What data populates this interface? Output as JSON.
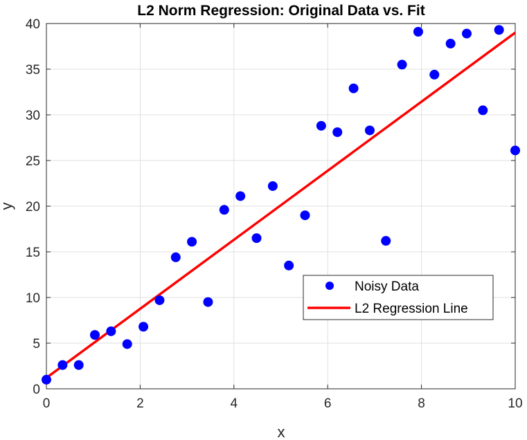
{
  "chart_data": {
    "type": "scatter",
    "title": "L2 Norm Regression: Original Data vs. Fit",
    "xlabel": "x",
    "ylabel": "y",
    "xlim": [
      0,
      10
    ],
    "ylim": [
      0,
      40
    ],
    "xticks": [
      0,
      2,
      4,
      6,
      8,
      10
    ],
    "yticks": [
      0,
      5,
      10,
      15,
      20,
      25,
      30,
      35,
      40
    ],
    "grid": true,
    "legend_position": "center-right",
    "series": [
      {
        "name": "Noisy Data",
        "kind": "scatter",
        "color": "#0000ff",
        "points": [
          [
            0.0,
            1.0
          ],
          [
            0.345,
            2.6
          ],
          [
            0.69,
            2.6
          ],
          [
            1.034,
            5.9
          ],
          [
            1.379,
            6.3
          ],
          [
            1.724,
            4.9
          ],
          [
            2.069,
            6.8
          ],
          [
            2.414,
            9.7
          ],
          [
            2.759,
            14.4
          ],
          [
            3.103,
            16.1
          ],
          [
            3.448,
            9.5
          ],
          [
            3.793,
            19.6
          ],
          [
            4.138,
            21.1
          ],
          [
            4.483,
            16.5
          ],
          [
            4.828,
            22.2
          ],
          [
            5.172,
            13.5
          ],
          [
            5.517,
            19.0
          ],
          [
            5.862,
            28.8
          ],
          [
            6.207,
            28.1
          ],
          [
            6.552,
            32.9
          ],
          [
            6.897,
            28.3
          ],
          [
            7.241,
            16.2
          ],
          [
            7.586,
            35.5
          ],
          [
            7.931,
            39.1
          ],
          [
            8.276,
            34.4
          ],
          [
            8.621,
            37.8
          ],
          [
            8.966,
            38.9
          ],
          [
            9.31,
            30.5
          ],
          [
            9.655,
            39.3
          ],
          [
            10.0,
            26.1
          ]
        ]
      },
      {
        "name": "L2 Regression Line",
        "kind": "line",
        "color": "#ff0000",
        "points": [
          [
            0,
            1.2
          ],
          [
            10,
            39.0
          ]
        ]
      }
    ]
  }
}
